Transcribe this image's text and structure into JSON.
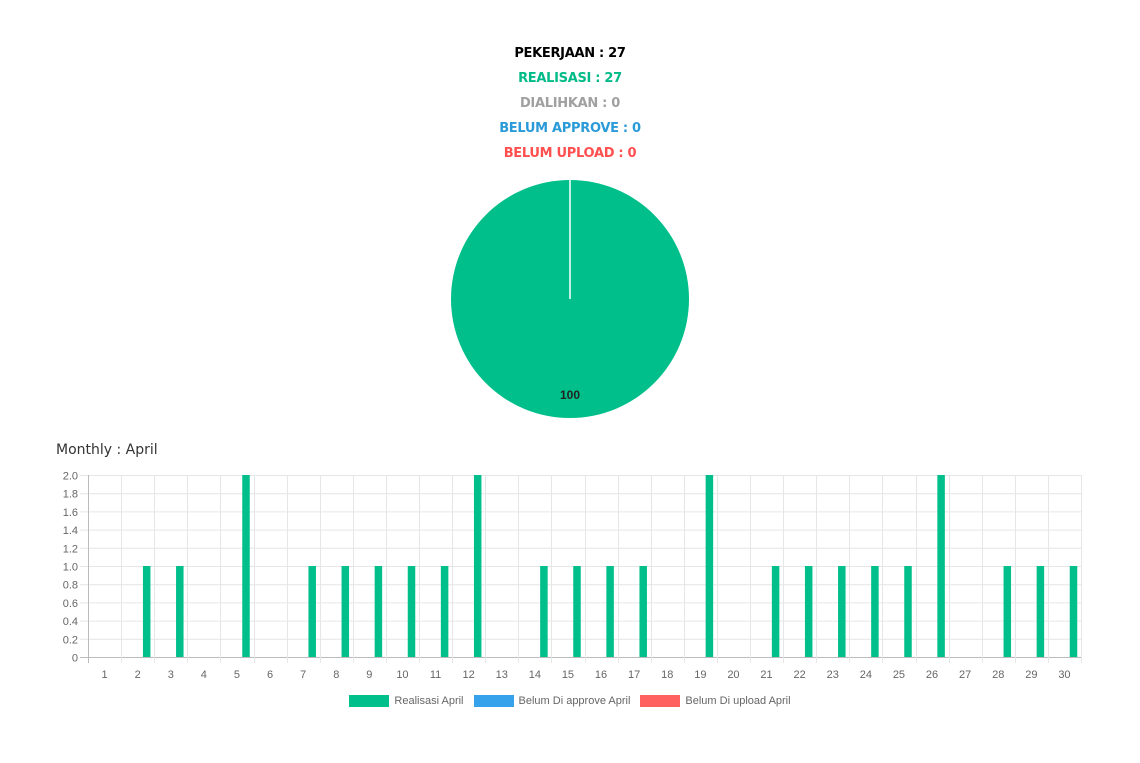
{
  "summary": {
    "pekerjaan": "PEKERJAAN : 27",
    "realisasi": "REALISASI : 27",
    "dialihkan": "DIALIHKAN : 0",
    "belum_approve": "BELUM APPROVE : 0",
    "belum_upload": "BELUM UPLOAD : 0"
  },
  "colors": {
    "pekerjaan": "#000000",
    "realisasi": "#00bb88",
    "dialihkan": "#a0a0a0",
    "belum_approve": "#2a9ad8",
    "belum_upload": "#ff4f4f",
    "realisasi_bar": "#00bf8a",
    "approve_bar": "#36a2eb",
    "upload_bar": "#ff6060"
  },
  "monthly_title": "Monthly : April",
  "chart_data": [
    {
      "type": "pie",
      "slices": [
        {
          "label": "REALISASI",
          "value": 100,
          "color": "#00bf8a"
        }
      ],
      "data_label": "100"
    },
    {
      "type": "bar",
      "title": "Monthly : April",
      "categories": [
        "1",
        "2",
        "3",
        "4",
        "5",
        "6",
        "7",
        "8",
        "9",
        "10",
        "11",
        "12",
        "13",
        "14",
        "15",
        "16",
        "17",
        "18",
        "19",
        "20",
        "21",
        "22",
        "23",
        "24",
        "25",
        "26",
        "27",
        "28",
        "29",
        "30"
      ],
      "series": [
        {
          "name": "Realisasi April",
          "color": "#00bf8a",
          "values": [
            0,
            1,
            1,
            0,
            2,
            0,
            1,
            1,
            1,
            1,
            1,
            2,
            0,
            1,
            1,
            1,
            1,
            0,
            2,
            0,
            1,
            1,
            1,
            1,
            1,
            2,
            0,
            1,
            1,
            1
          ]
        },
        {
          "name": "Belum Di approve April",
          "color": "#36a2eb",
          "values": [
            0,
            0,
            0,
            0,
            0,
            0,
            0,
            0,
            0,
            0,
            0,
            0,
            0,
            0,
            0,
            0,
            0,
            0,
            0,
            0,
            0,
            0,
            0,
            0,
            0,
            0,
            0,
            0,
            0,
            0
          ]
        },
        {
          "name": "Belum Di upload April",
          "color": "#ff6060",
          "values": [
            0,
            0,
            0,
            0,
            0,
            0,
            0,
            0,
            0,
            0,
            0,
            0,
            0,
            0,
            0,
            0,
            0,
            0,
            0,
            0,
            0,
            0,
            0,
            0,
            0,
            0,
            0,
            0,
            0,
            0
          ]
        }
      ],
      "ylim": [
        0,
        2.0
      ],
      "y_ticks": [
        "0",
        "0.2",
        "0.4",
        "0.6",
        "0.8",
        "1.0",
        "1.2",
        "1.4",
        "1.6",
        "1.8",
        "2.0"
      ],
      "grid": true,
      "legend_position": "bottom"
    }
  ]
}
